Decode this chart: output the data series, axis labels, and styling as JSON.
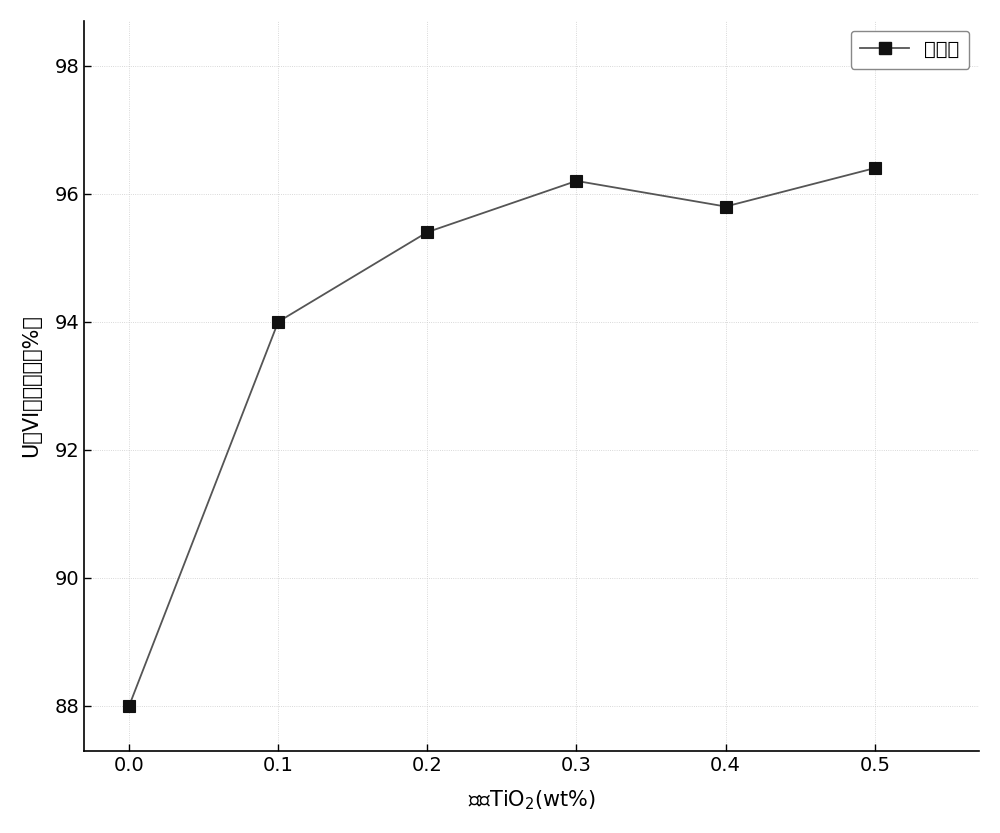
{
  "x": [
    0.0,
    0.1,
    0.2,
    0.3,
    0.4,
    0.5
  ],
  "y": [
    88.0,
    94.0,
    95.4,
    96.2,
    95.8,
    96.4
  ],
  "xlim": [
    -0.03,
    0.57
  ],
  "ylim": [
    87.3,
    98.7
  ],
  "xticks": [
    0.0,
    0.1,
    0.2,
    0.3,
    0.4,
    0.5
  ],
  "yticks": [
    88,
    90,
    92,
    94,
    96,
    98
  ],
  "xlabel": "纳米TiO$_2$(wt%)",
  "ylabel": "U（VI）去污率（%）",
  "legend_label": "去污率",
  "line_color": "#555555",
  "marker": "s",
  "marker_facecolor": "#111111",
  "marker_edgecolor": "#111111",
  "marker_size": 8,
  "line_width": 1.3,
  "grid_color": "#cccccc",
  "grid_linestyle": ":",
  "background_color": "#ffffff",
  "plot_bg_color": "#ffffff",
  "tick_fontsize": 14,
  "label_fontsize": 15,
  "legend_fontsize": 14
}
